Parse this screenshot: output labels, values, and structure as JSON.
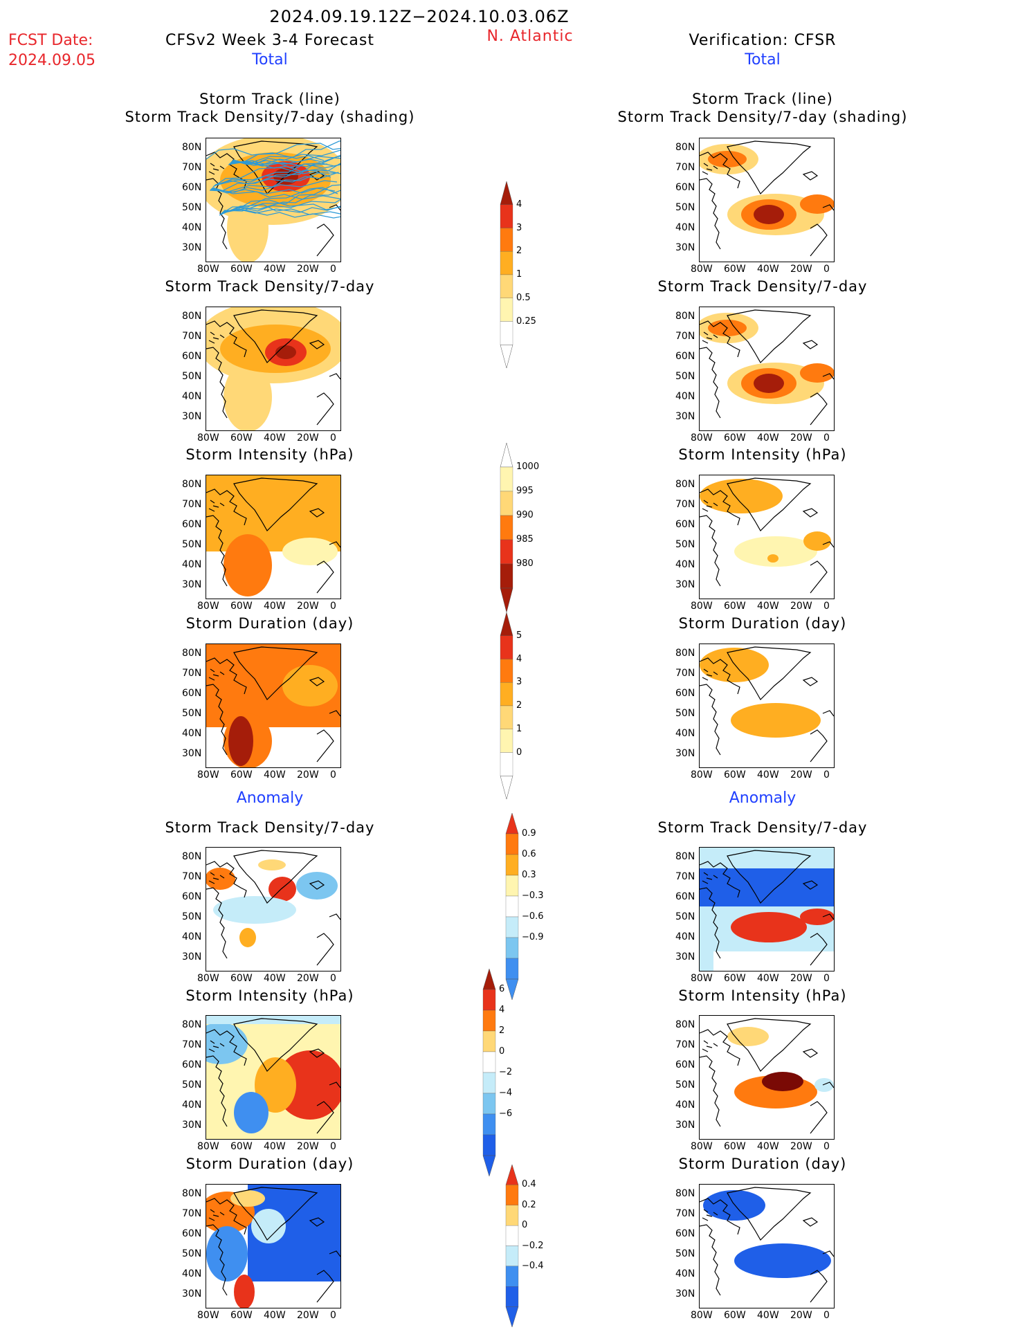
{
  "header": {
    "date_range": "2024.09.19.12Z−2024.10.03.06Z",
    "fcst_label": "FCST Date:",
    "fcst_date": "2024.09.05",
    "model_title": "CFSv2 Week 3-4 Forecast",
    "region": "N. Atlantic",
    "verification": "Verification: CFSR"
  },
  "sections": {
    "total": "Total",
    "anomaly": "Anomaly"
  },
  "panel_titles": {
    "track_line": "Storm Track (line)",
    "track_shading": "Storm Track Density/7-day (shading)",
    "density": "Storm Track Density/7-day",
    "intensity": "Storm Intensity (hPa)",
    "duration": "Storm Duration (day)"
  },
  "axes": {
    "lat_ticks": [
      "80N",
      "70N",
      "60N",
      "50N",
      "40N",
      "30N"
    ],
    "lon_ticks": [
      "80W",
      "60W",
      "40W",
      "20W",
      "0"
    ]
  },
  "colorbars": {
    "density_total": [
      "4",
      "3",
      "2",
      "1",
      "0.5",
      "0.25"
    ],
    "intensity_total": [
      "1000",
      "995",
      "990",
      "985",
      "980"
    ],
    "duration_total": [
      "5",
      "4",
      "3",
      "2",
      "1",
      "0"
    ],
    "density_anom": [
      "0.9",
      "0.6",
      "0.3",
      "−0.3",
      "−0.6",
      "−0.9"
    ],
    "intensity_anom": [
      "6",
      "4",
      "2",
      "0",
      "−2",
      "−4",
      "−6"
    ],
    "duration_anom": [
      "0.4",
      "0.2",
      "0",
      "−0.2",
      "−0.4"
    ]
  },
  "colors": {
    "text_red": "#e8262b",
    "text_blue": "#1f3fff",
    "warm": [
      "#fff5b0",
      "#ffd877",
      "#ffae21",
      "#ff7a0f",
      "#e8331b",
      "#a51d0a",
      "#7a0a05"
    ],
    "cool": [
      "#c5ecf9",
      "#7cc6f0",
      "#3f8ff0",
      "#1f5fe8"
    ]
  }
}
